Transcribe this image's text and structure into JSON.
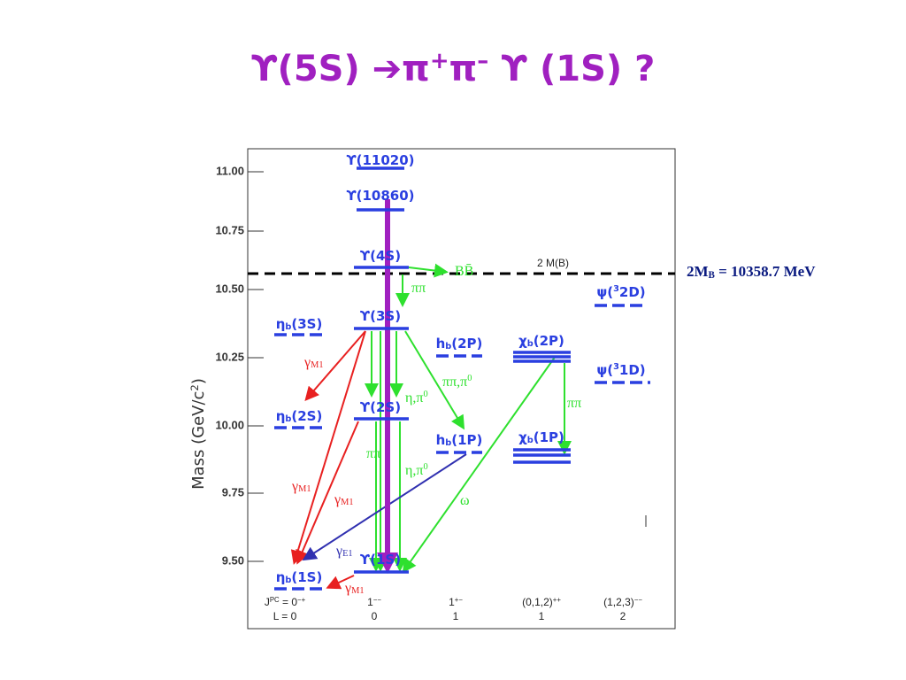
{
  "title": [
    "ϒ(5S) ➔π",
    {
      "sup": "+"
    },
    "π",
    {
      "sup": "–"
    },
    " ϒ (1S) ?"
  ],
  "annotation": [
    "2M",
    {
      "sub": "B"
    },
    " = 10358.7 MeV"
  ],
  "axis": {
    "label": [
      "Mass (GeV/c",
      {
        "sup": "2"
      },
      ")"
    ],
    "ticks": [
      "11.00",
      "10.75",
      "10.50",
      "10.25",
      "10.00",
      "9.75",
      "9.50"
    ]
  },
  "threshold": "2 M(B)",
  "levels": [
    [
      "ϒ(11020)"
    ],
    [
      "ϒ(10860)"
    ],
    [
      "ϒ(4S)"
    ],
    [
      "ϒ(3S)"
    ],
    [
      "ϒ(2S)"
    ],
    [
      "ϒ(1S)"
    ],
    [
      "η",
      {
        "sub": "b"
      },
      "(3S)"
    ],
    [
      "η",
      {
        "sub": "b"
      },
      "(2S)"
    ],
    [
      "η",
      {
        "sub": "b"
      },
      "(1S)"
    ],
    [
      "h",
      {
        "sub": "b"
      },
      "(2P)"
    ],
    [
      "h",
      {
        "sub": "b"
      },
      "(1P)"
    ],
    [
      "χ",
      {
        "sub": "b"
      },
      "(2P)"
    ],
    [
      "χ",
      {
        "sub": "b"
      },
      "(1P)"
    ],
    [
      "ψ(",
      {
        "sup": "3"
      },
      "2D)"
    ],
    [
      "ψ(",
      {
        "sup": "3"
      },
      "1D)"
    ]
  ],
  "decay_labels": [
    [
      "ππ"
    ],
    [
      "γ",
      {
        "sub": "M1"
      }
    ],
    [
      "η,π",
      {
        "sup": "0"
      }
    ],
    [
      "ππ,π",
      {
        "sup": "0"
      }
    ],
    [
      "ππ"
    ],
    [
      "η,π",
      {
        "sup": "0"
      }
    ],
    [
      "γ",
      {
        "sub": "M1"
      }
    ],
    [
      "γ",
      {
        "sub": "M1"
      }
    ],
    [
      "ω"
    ],
    [
      "ππ"
    ],
    [
      "γ",
      {
        "sub": "E1"
      }
    ],
    [
      "γ",
      {
        "sub": "M1"
      }
    ],
    [
      "BB̄"
    ]
  ],
  "quantum_numbers": {
    "jpc": [
      [
        "J",
        {
          "sup": "PC"
        },
        " = 0",
        {
          "sup": "−+"
        }
      ],
      [
        "1",
        {
          "sup": "−−"
        }
      ],
      [
        "1",
        {
          "sup": "+−"
        }
      ],
      [
        "(0,1,2)",
        {
          "sup": "++"
        }
      ],
      [
        "(1,2,3)",
        {
          "sup": "−−"
        }
      ]
    ],
    "l": [
      "L = 0",
      "0",
      "1",
      "1",
      "2"
    ]
  }
}
